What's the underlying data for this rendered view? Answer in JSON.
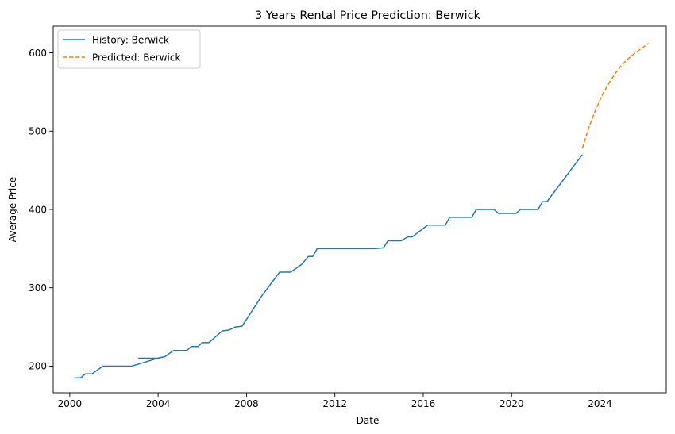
{
  "chart_data": {
    "type": "line",
    "title": "3 Years Rental Price Prediction: Berwick",
    "xlabel": "Date",
    "ylabel": "Average Price",
    "xlim": [
      1999.25,
      2027.0
    ],
    "ylim": [
      166,
      634
    ],
    "x_ticks": [
      2000,
      2004,
      2008,
      2012,
      2016,
      2020,
      2024
    ],
    "x_tick_labels": [
      "2000",
      "2004",
      "2008",
      "2012",
      "2016",
      "2020",
      "2024"
    ],
    "y_ticks": [
      200,
      300,
      400,
      500,
      600
    ],
    "y_tick_labels": [
      "200",
      "300",
      "400",
      "500",
      "600"
    ],
    "grid": false,
    "legend_position": "top-left",
    "series": [
      {
        "name": "History: Berwick",
        "color": "#1f77b4",
        "style": "solid",
        "points": [
          [
            2000.2,
            185
          ],
          [
            2000.5,
            185
          ],
          [
            2000.7,
            190
          ],
          [
            2001.0,
            190
          ],
          [
            2001.5,
            200
          ],
          [
            2002.0,
            200
          ],
          [
            2002.8,
            200
          ],
          [
            2004.1,
            211
          ],
          [
            2004.3,
            212
          ],
          [
            2004.7,
            220
          ],
          [
            2005.1,
            220
          ],
          [
            2005.3,
            220
          ],
          [
            2005.5,
            225
          ],
          [
            2005.8,
            225
          ],
          [
            2006.0,
            230
          ],
          [
            2006.3,
            230
          ],
          [
            2006.9,
            245
          ],
          [
            2007.2,
            246
          ],
          [
            2007.5,
            250
          ],
          [
            2007.8,
            251
          ],
          [
            2008.7,
            290
          ],
          [
            2009.5,
            320
          ],
          [
            2010.0,
            320
          ],
          [
            2010.5,
            330
          ],
          [
            2010.8,
            340
          ],
          [
            2011.0,
            340
          ],
          [
            2011.2,
            350
          ],
          [
            2012.0,
            350
          ],
          [
            2013.0,
            350
          ],
          [
            2013.8,
            350
          ],
          [
            2014.2,
            351
          ],
          [
            2014.4,
            360
          ],
          [
            2015.0,
            360
          ],
          [
            2015.3,
            365
          ],
          [
            2015.5,
            365
          ],
          [
            2016.2,
            380
          ],
          [
            2017.0,
            380
          ],
          [
            2017.2,
            390
          ],
          [
            2018.2,
            390
          ],
          [
            2018.4,
            400
          ],
          [
            2019.2,
            400
          ],
          [
            2019.4,
            395
          ],
          [
            2020.2,
            395
          ],
          [
            2020.4,
            400
          ],
          [
            2021.2,
            400
          ],
          [
            2021.4,
            410
          ],
          [
            2021.6,
            410
          ],
          [
            2023.2,
            470
          ]
        ]
      },
      {
        "name": "",
        "color": "#1f77b4",
        "style": "solid",
        "points": [
          [
            2003.1,
            210
          ],
          [
            2004.1,
            210
          ]
        ]
      },
      {
        "name": "Predicted: Berwick",
        "color": "#ff7f0e",
        "style": "dashed",
        "points": [
          [
            2023.2,
            478
          ],
          [
            2023.5,
            505
          ],
          [
            2023.8,
            527
          ],
          [
            2024.1,
            546
          ],
          [
            2024.4,
            561
          ],
          [
            2024.7,
            574
          ],
          [
            2025.0,
            585
          ],
          [
            2025.3,
            593
          ],
          [
            2025.6,
            600
          ],
          [
            2025.9,
            606
          ],
          [
            2026.2,
            612
          ]
        ]
      }
    ]
  }
}
